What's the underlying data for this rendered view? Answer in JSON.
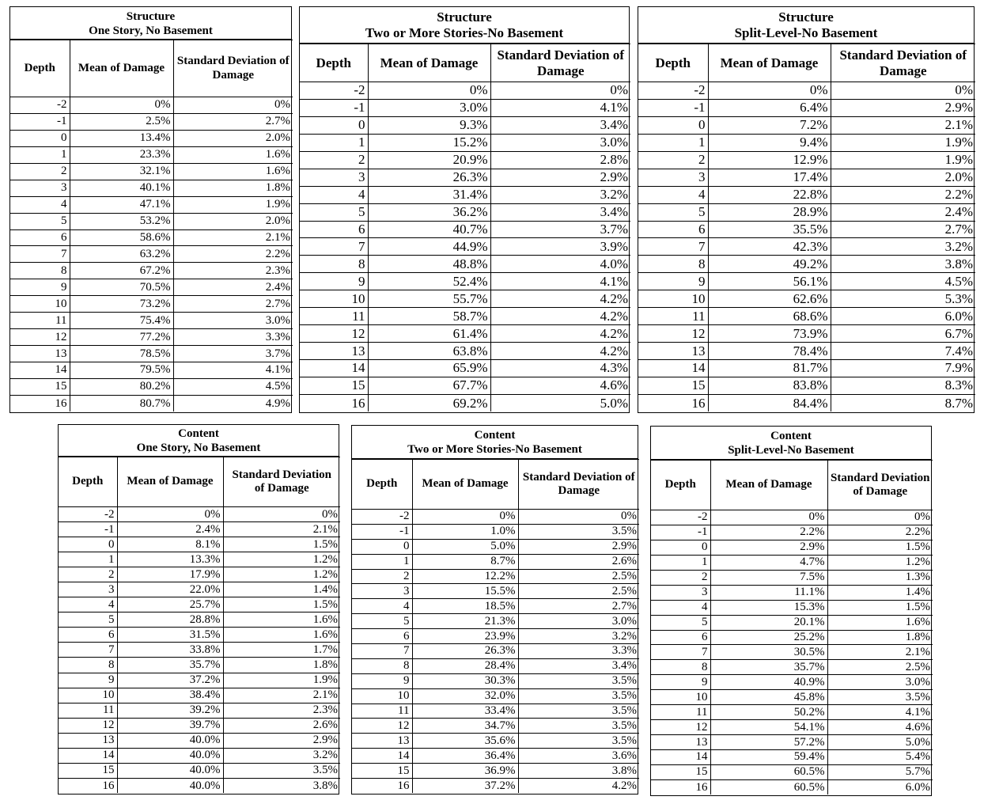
{
  "headers": {
    "depth": "Depth",
    "mean": "Mean of Damage",
    "sd": "Standard Deviation of Damage"
  },
  "depths": [
    "-2",
    "-1",
    "0",
    "1",
    "2",
    "3",
    "4",
    "5",
    "6",
    "7",
    "8",
    "9",
    "10",
    "11",
    "12",
    "13",
    "14",
    "15",
    "16"
  ],
  "tables": [
    {
      "title_line1": "Structure",
      "title_line2": "One Story, No Basement",
      "mean": [
        "0%",
        "2.5%",
        "13.4%",
        "23.3%",
        "32.1%",
        "40.1%",
        "47.1%",
        "53.2%",
        "58.6%",
        "63.2%",
        "67.2%",
        "70.5%",
        "73.2%",
        "75.4%",
        "77.2%",
        "78.5%",
        "79.5%",
        "80.2%",
        "80.7%"
      ],
      "sd": [
        "0%",
        "2.7%",
        "2.0%",
        "1.6%",
        "1.6%",
        "1.8%",
        "1.9%",
        "2.0%",
        "2.1%",
        "2.2%",
        "2.3%",
        "2.4%",
        "2.7%",
        "3.0%",
        "3.3%",
        "3.7%",
        "4.1%",
        "4.5%",
        "4.9%"
      ]
    },
    {
      "title_line1": "Structure",
      "title_line2": "Two or More Stories-No Basement",
      "mean": [
        "0%",
        "3.0%",
        "9.3%",
        "15.2%",
        "20.9%",
        "26.3%",
        "31.4%",
        "36.2%",
        "40.7%",
        "44.9%",
        "48.8%",
        "52.4%",
        "55.7%",
        "58.7%",
        "61.4%",
        "63.8%",
        "65.9%",
        "67.7%",
        "69.2%"
      ],
      "sd": [
        "0%",
        "4.1%",
        "3.4%",
        "3.0%",
        "2.8%",
        "2.9%",
        "3.2%",
        "3.4%",
        "3.7%",
        "3.9%",
        "4.0%",
        "4.1%",
        "4.2%",
        "4.2%",
        "4.2%",
        "4.2%",
        "4.3%",
        "4.6%",
        "5.0%"
      ]
    },
    {
      "title_line1": "Structure",
      "title_line2": "Split-Level-No Basement",
      "mean": [
        "0%",
        "6.4%",
        "7.2%",
        "9.4%",
        "12.9%",
        "17.4%",
        "22.8%",
        "28.9%",
        "35.5%",
        "42.3%",
        "49.2%",
        "56.1%",
        "62.6%",
        "68.6%",
        "73.9%",
        "78.4%",
        "81.7%",
        "83.8%",
        "84.4%"
      ],
      "sd": [
        "0%",
        "2.9%",
        "2.1%",
        "1.9%",
        "1.9%",
        "2.0%",
        "2.2%",
        "2.4%",
        "2.7%",
        "3.2%",
        "3.8%",
        "4.5%",
        "5.3%",
        "6.0%",
        "6.7%",
        "7.4%",
        "7.9%",
        "8.3%",
        "8.7%"
      ]
    },
    {
      "title_line1": "Content",
      "title_line2": "One Story, No Basement",
      "mean": [
        "0%",
        "2.4%",
        "8.1%",
        "13.3%",
        "17.9%",
        "22.0%",
        "25.7%",
        "28.8%",
        "31.5%",
        "33.8%",
        "35.7%",
        "37.2%",
        "38.4%",
        "39.2%",
        "39.7%",
        "40.0%",
        "40.0%",
        "40.0%",
        "40.0%"
      ],
      "sd": [
        "0%",
        "2.1%",
        "1.5%",
        "1.2%",
        "1.2%",
        "1.4%",
        "1.5%",
        "1.6%",
        "1.6%",
        "1.7%",
        "1.8%",
        "1.9%",
        "2.1%",
        "2.3%",
        "2.6%",
        "2.9%",
        "3.2%",
        "3.5%",
        "3.8%"
      ]
    },
    {
      "title_line1": "Content",
      "title_line2": "Two or More Stories-No Basement",
      "mean": [
        "0%",
        "1.0%",
        "5.0%",
        "8.7%",
        "12.2%",
        "15.5%",
        "18.5%",
        "21.3%",
        "23.9%",
        "26.3%",
        "28.4%",
        "30.3%",
        "32.0%",
        "33.4%",
        "34.7%",
        "35.6%",
        "36.4%",
        "36.9%",
        "37.2%"
      ],
      "sd": [
        "0%",
        "3.5%",
        "2.9%",
        "2.6%",
        "2.5%",
        "2.5%",
        "2.7%",
        "3.0%",
        "3.2%",
        "3.3%",
        "3.4%",
        "3.5%",
        "3.5%",
        "3.5%",
        "3.5%",
        "3.5%",
        "3.6%",
        "3.8%",
        "4.2%"
      ]
    },
    {
      "title_line1": "Content",
      "title_line2": "Split-Level-No Basement",
      "mean": [
        "0%",
        "2.2%",
        "2.9%",
        "4.7%",
        "7.5%",
        "11.1%",
        "15.3%",
        "20.1%",
        "25.2%",
        "30.5%",
        "35.7%",
        "40.9%",
        "45.8%",
        "50.2%",
        "54.1%",
        "57.2%",
        "59.4%",
        "60.5%",
        "60.5%"
      ],
      "sd": [
        "0%",
        "2.2%",
        "1.5%",
        "1.2%",
        "1.3%",
        "1.4%",
        "1.5%",
        "1.6%",
        "1.8%",
        "2.1%",
        "2.5%",
        "3.0%",
        "3.5%",
        "4.1%",
        "4.6%",
        "5.0%",
        "5.4%",
        "5.7%",
        "6.0%"
      ]
    }
  ]
}
